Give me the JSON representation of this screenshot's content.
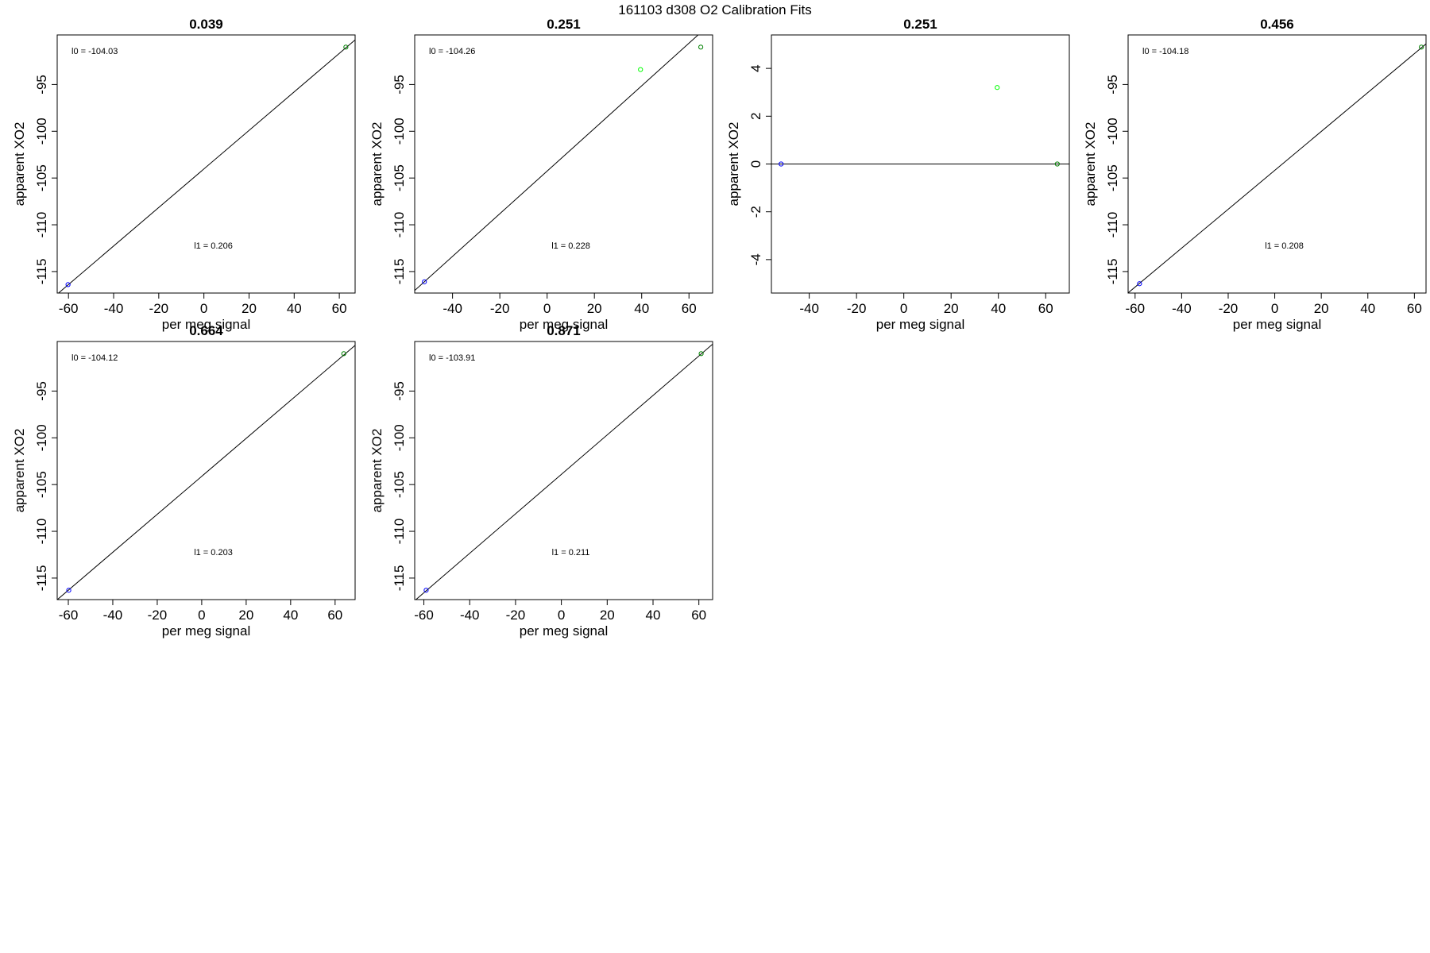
{
  "page_title": "161103   d308   O2 Calibration Fits",
  "colors": {
    "low_point": "#0000ff",
    "high_point": "#008000",
    "mid_point": "#00ff00",
    "fit_line": "#000000",
    "frame": "#000000"
  },
  "chart_data": [
    {
      "type": "scatter",
      "title": "0.039",
      "xlabel": "per meg signal",
      "ylabel": "apparent XO2",
      "xlim": [
        -65,
        67
      ],
      "ylim": [
        -117.3,
        -89.7
      ],
      "xticks": [
        "-60",
        "-40",
        "-20",
        "0",
        "20",
        "40",
        "60"
      ],
      "yticks": [
        "-115",
        "-110",
        "-105",
        "-100",
        "-95"
      ],
      "annotations": {
        "l0": "l0 =  -104.03",
        "l1": "l1 =  0.206"
      },
      "fit": {
        "intercept": -104.03,
        "slope": 0.206
      },
      "points": [
        {
          "x": -60.2,
          "y": -116.4,
          "color": "low_point"
        },
        {
          "x": 62.9,
          "y": -91.0,
          "color": "high_point"
        }
      ]
    },
    {
      "type": "scatter",
      "title": "0.251",
      "xlabel": "per meg signal",
      "ylabel": "apparent XO2",
      "xlim": [
        -56,
        70
      ],
      "ylim": [
        -117.3,
        -89.7
      ],
      "xticks": [
        "-40",
        "-20",
        "0",
        "20",
        "40",
        "60"
      ],
      "yticks": [
        "-115",
        "-110",
        "-105",
        "-100",
        "-95"
      ],
      "annotations": {
        "l0": "l0 =  -104.26",
        "l1": "l1 =  0.228"
      },
      "fit": {
        "intercept": -104.26,
        "slope": 0.228
      },
      "points": [
        {
          "x": -51.9,
          "y": -116.1,
          "color": "low_point"
        },
        {
          "x": 39.5,
          "y": -93.4,
          "color": "mid_point"
        },
        {
          "x": 65.0,
          "y": -91.0,
          "color": "high_point"
        }
      ]
    },
    {
      "type": "scatter",
      "title": "0.251",
      "xlabel": "per meg signal",
      "ylabel": "apparent XO2",
      "xlim": [
        -56,
        70
      ],
      "ylim": [
        -5.4,
        5.4
      ],
      "xticks": [
        "-40",
        "-20",
        "0",
        "20",
        "40",
        "60"
      ],
      "yticks": [
        "-4",
        "-2",
        "0",
        "2",
        "4"
      ],
      "annotations": {
        "l0": "",
        "l1": ""
      },
      "fit": {
        "intercept": 0,
        "slope": 0
      },
      "points": [
        {
          "x": -51.9,
          "y": 0.0,
          "color": "low_point"
        },
        {
          "x": 39.5,
          "y": 3.2,
          "color": "mid_point"
        },
        {
          "x": 64.9,
          "y": 0.0,
          "color": "high_point"
        }
      ]
    },
    {
      "type": "scatter",
      "title": "0.456",
      "xlabel": "per meg signal",
      "ylabel": "apparent XO2",
      "xlim": [
        -63,
        65
      ],
      "ylim": [
        -117.3,
        -89.7
      ],
      "xticks": [
        "-60",
        "-40",
        "-20",
        "0",
        "20",
        "40",
        "60"
      ],
      "yticks": [
        "-115",
        "-110",
        "-105",
        "-100",
        "-95"
      ],
      "annotations": {
        "l0": "l0 =  -104.18",
        "l1": "l1 =  0.208"
      },
      "fit": {
        "intercept": -104.18,
        "slope": 0.208
      },
      "points": [
        {
          "x": -58.1,
          "y": -116.3,
          "color": "low_point"
        },
        {
          "x": 63.0,
          "y": -91.0,
          "color": "high_point"
        }
      ]
    },
    {
      "type": "scatter",
      "title": "0.664",
      "xlabel": "per meg signal",
      "ylabel": "apparent XO2",
      "xlim": [
        -65,
        69
      ],
      "ylim": [
        -117.3,
        -89.7
      ],
      "xticks": [
        "-60",
        "-40",
        "-20",
        "0",
        "20",
        "40",
        "60"
      ],
      "yticks": [
        "-115",
        "-110",
        "-105",
        "-100",
        "-95"
      ],
      "annotations": {
        "l0": "l0 =  -104.12",
        "l1": "l1 =  0.203"
      },
      "fit": {
        "intercept": -104.12,
        "slope": 0.203
      },
      "points": [
        {
          "x": -59.8,
          "y": -116.3,
          "color": "low_point"
        },
        {
          "x": 63.9,
          "y": -91.0,
          "color": "high_point"
        }
      ]
    },
    {
      "type": "scatter",
      "title": "0.871",
      "xlabel": "per meg signal",
      "ylabel": "apparent XO2",
      "xlim": [
        -64,
        66
      ],
      "ylim": [
        -117.3,
        -89.7
      ],
      "xticks": [
        "-60",
        "-40",
        "-20",
        "0",
        "20",
        "40",
        "60"
      ],
      "yticks": [
        "-115",
        "-110",
        "-105",
        "-100",
        "-95"
      ],
      "annotations": {
        "l0": "l0 =  -103.91",
        "l1": "l1 =  0.211"
      },
      "fit": {
        "intercept": -103.91,
        "slope": 0.211
      },
      "points": [
        {
          "x": -59.0,
          "y": -116.3,
          "color": "low_point"
        },
        {
          "x": 61.0,
          "y": -91.0,
          "color": "high_point"
        }
      ]
    }
  ]
}
